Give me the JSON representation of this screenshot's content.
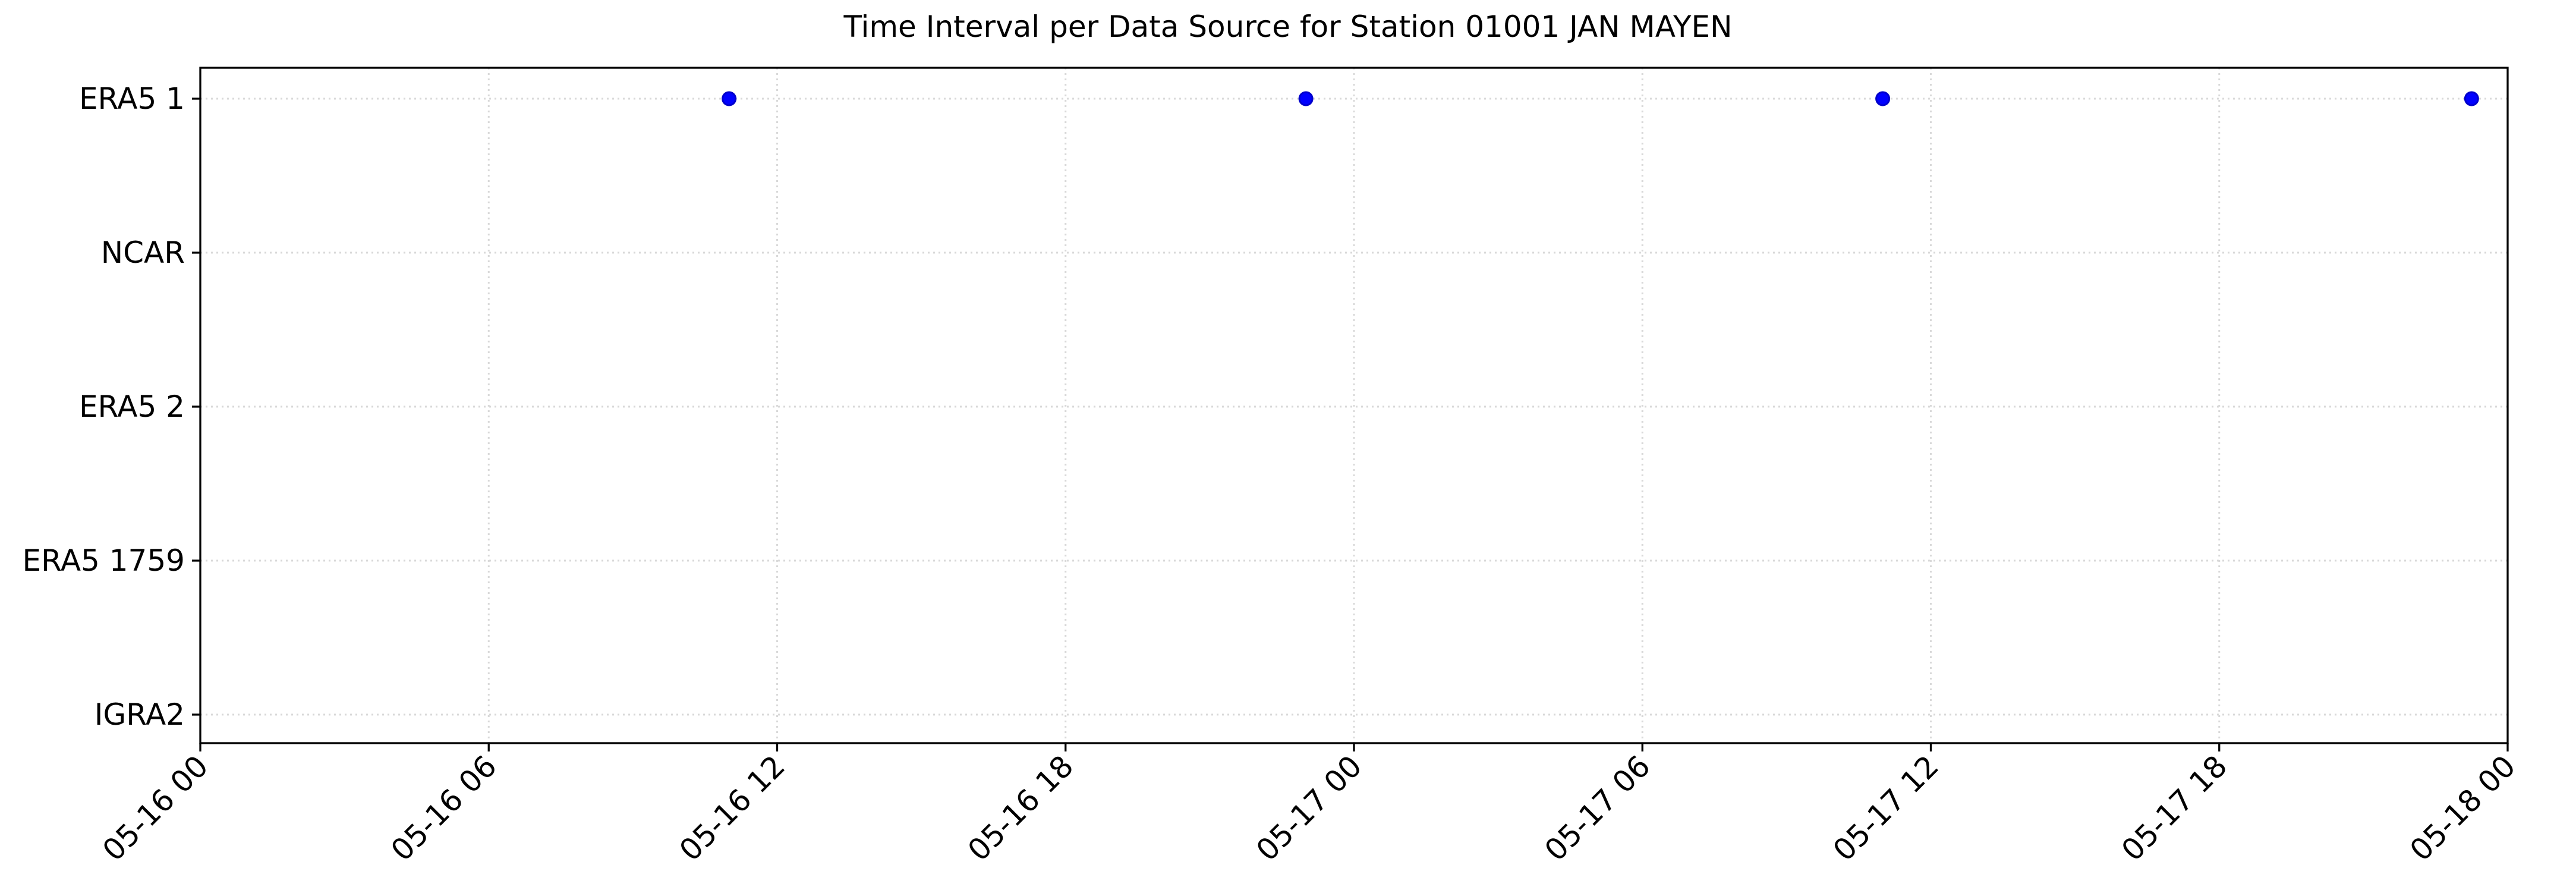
{
  "chart_data": {
    "type": "scatter",
    "title": "Time Interval per Data Source for Station 01001 JAN MAYEN",
    "xlabel": "",
    "ylabel": "",
    "categories": [
      "ERA5 1",
      "NCAR",
      "ERA5 2",
      "ERA5 1759",
      "IGRA2"
    ],
    "x_ticks": [
      "05-16 00",
      "05-16 06",
      "05-16 12",
      "05-16 18",
      "05-17 00",
      "05-17 06",
      "05-17 12",
      "05-17 18",
      "05-18 00"
    ],
    "xlim": [
      "05-16 00:00",
      "05-18 00:00"
    ],
    "grid": true,
    "series": [
      {
        "color": "#0000ff",
        "points": [
          {
            "x": "05-16 11:00",
            "y": "ERA5 1"
          },
          {
            "x": "05-16 23:00",
            "y": "ERA5 1"
          },
          {
            "x": "05-17 11:00",
            "y": "ERA5 1"
          },
          {
            "x": "05-17 23:15",
            "y": "ERA5 1"
          }
        ]
      }
    ]
  }
}
